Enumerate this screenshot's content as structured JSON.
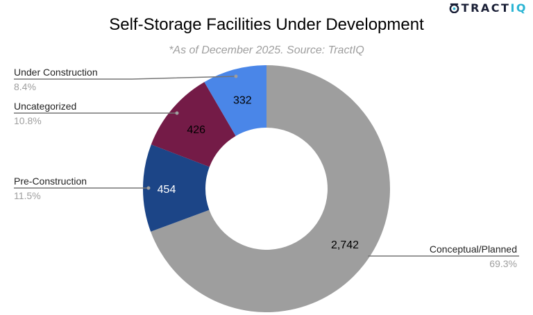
{
  "logo": {
    "brand": "TRACT",
    "brand_accent": "IQ",
    "icon": "tractiq-logo-icon"
  },
  "title": "Self-Storage Facilities Under Development",
  "subtitle": "*As of December 2025. Source: TractIQ",
  "chart_data": {
    "type": "pie",
    "donut": true,
    "title": "Self-Storage Facilities Under Development",
    "subtitle": "*As of December 2025. Source: TractIQ",
    "start": "top, clockwise",
    "slices": [
      {
        "label": "Conceptual/Planned",
        "value": 2742,
        "value_label": "2,742",
        "percent_label": "69.3%",
        "color": "#9e9e9e",
        "value_text_color": "#000000",
        "label_side": "right"
      },
      {
        "label": "Pre-Construction",
        "value": 454,
        "value_label": "454",
        "percent_label": "11.5%",
        "color": "#1c4587",
        "value_text_color": "#ffffff",
        "label_side": "left"
      },
      {
        "label": "Uncategorized",
        "value": 426,
        "value_label": "426",
        "percent_label": "10.8%",
        "color": "#741b47",
        "value_text_color": "#000000",
        "label_side": "left"
      },
      {
        "label": "Under Construction",
        "value": 332,
        "value_label": "332",
        "percent_label": "8.4%",
        "color": "#4a86e8",
        "value_text_color": "#000000",
        "label_side": "left"
      }
    ],
    "legend": "none (callout labels)"
  }
}
